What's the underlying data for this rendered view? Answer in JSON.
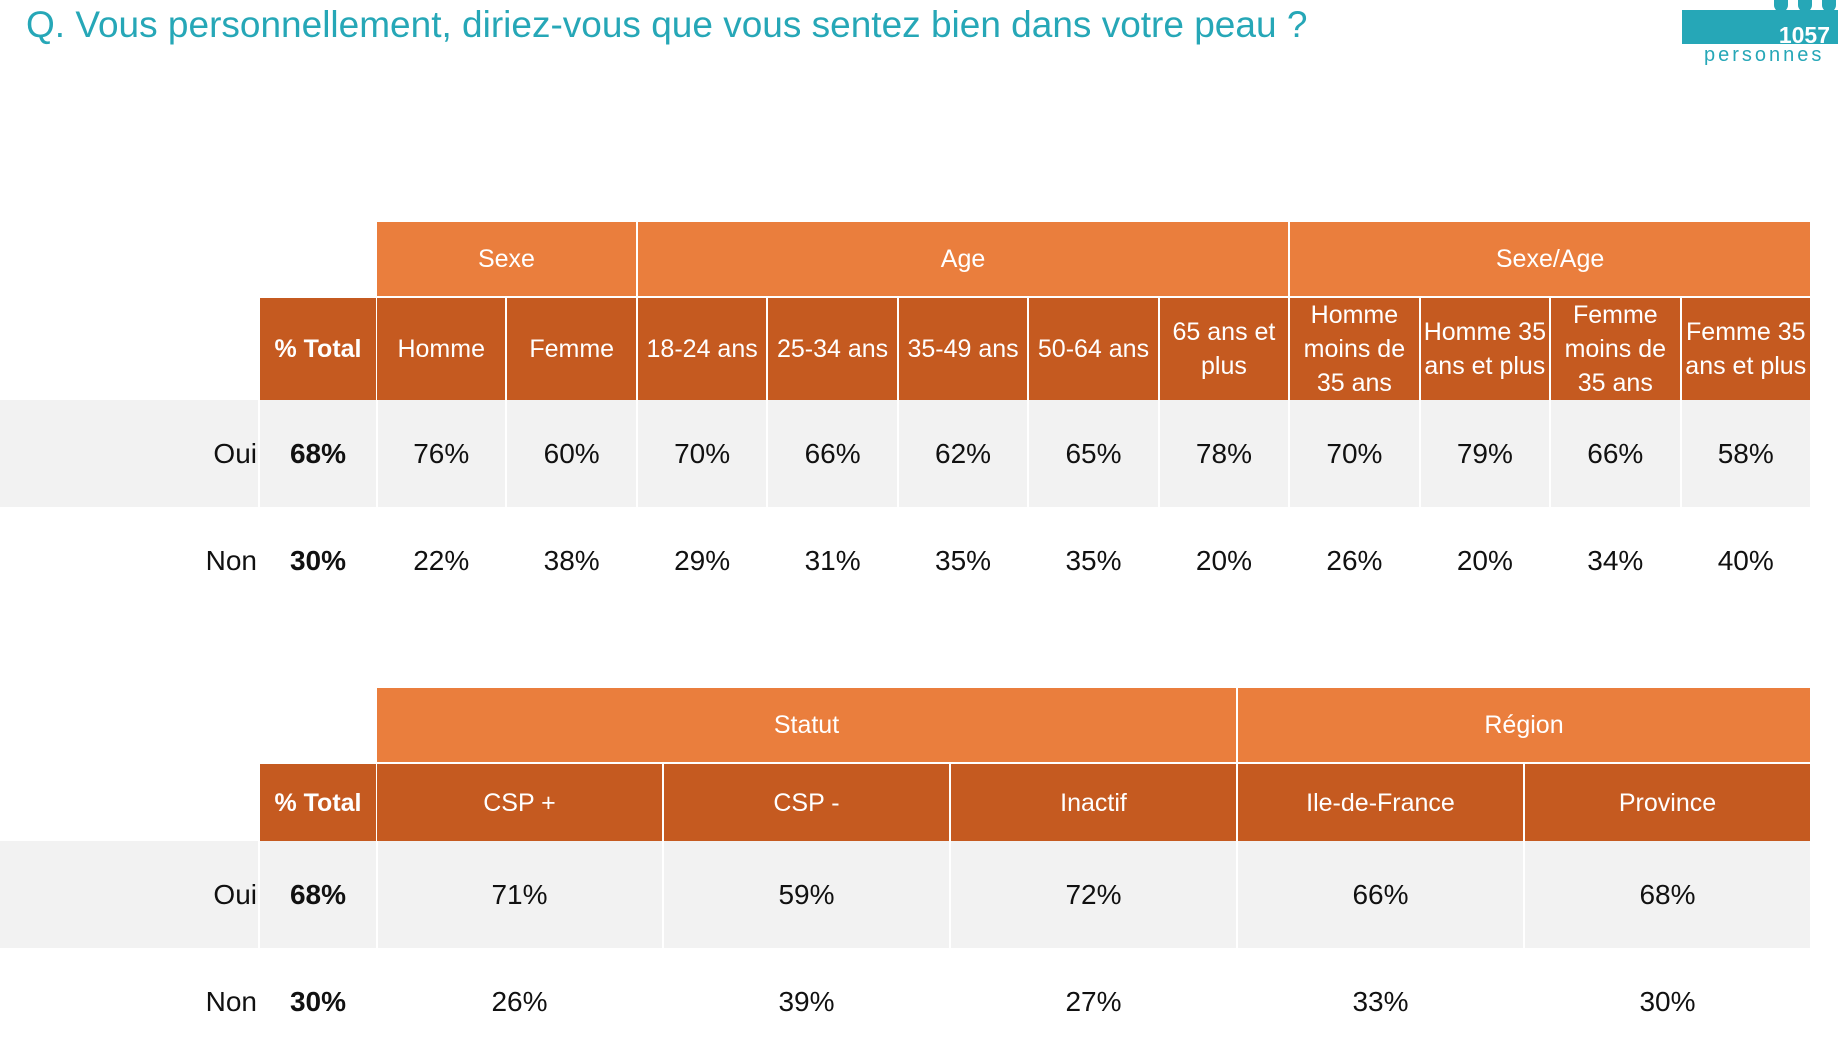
{
  "question": "Q. Vous personnellement, diriez-vous que vous sentez bien dans votre peau ?",
  "sample": {
    "count": "1057",
    "label": "personnes"
  },
  "colors": {
    "title": "#26a7b7",
    "group_header": "#ea7e3d",
    "col_header": "#c55a20",
    "row_stripe": "#f2f2f2"
  },
  "chart_data": [
    {
      "type": "table",
      "groups": [
        {
          "label": "Sexe",
          "columns": [
            "Homme",
            "Femme"
          ]
        },
        {
          "label": "Age",
          "columns": [
            "18-24 ans",
            "25-34 ans",
            "35-49 ans",
            "50-64 ans",
            "65 ans et plus"
          ]
        },
        {
          "label": "Sexe/Age",
          "columns": [
            "Homme moins de 35 ans",
            "Homme 35 ans et plus",
            "Femme moins de 35 ans",
            "Femme 35 ans et plus"
          ]
        }
      ],
      "total_label": "% Total",
      "rows": [
        {
          "label": "Oui",
          "total": "68%",
          "values": [
            "76%",
            "60%",
            "70%",
            "66%",
            "62%",
            "65%",
            "78%",
            "70%",
            "79%",
            "66%",
            "58%"
          ]
        },
        {
          "label": "Non",
          "total": "30%",
          "values": [
            "22%",
            "38%",
            "29%",
            "31%",
            "35%",
            "35%",
            "20%",
            "26%",
            "20%",
            "34%",
            "40%"
          ]
        }
      ]
    },
    {
      "type": "table",
      "groups": [
        {
          "label": "Statut",
          "columns": [
            "CSP +",
            "CSP -",
            "Inactif"
          ]
        },
        {
          "label": "Région",
          "columns": [
            "Ile-de-France",
            "Province"
          ]
        }
      ],
      "total_label": "% Total",
      "rows": [
        {
          "label": "Oui",
          "total": "68%",
          "values": [
            "71%",
            "59%",
            "72%",
            "66%",
            "68%"
          ]
        },
        {
          "label": "Non",
          "total": "30%",
          "values": [
            "26%",
            "39%",
            "27%",
            "33%",
            "30%"
          ]
        }
      ]
    }
  ]
}
